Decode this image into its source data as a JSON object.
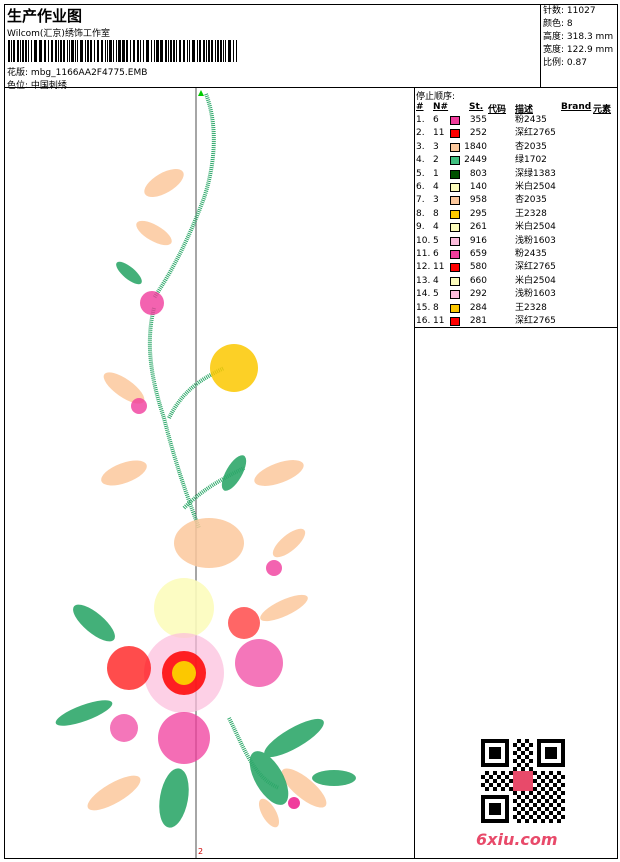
{
  "header": {
    "title": "生产作业图",
    "company": "Wilcom(汇京)绣饰工作室",
    "pattern_label": "花版:",
    "pattern_value": "mbg_1166AA2F4775.EMB",
    "colorpos_label": "色位:",
    "colorpos_value": "中国刺绣"
  },
  "stats": [
    {
      "label": "针数:",
      "value": "11027"
    },
    {
      "label": "颜色:",
      "value": "8"
    },
    {
      "label": "高度:",
      "value": "318.3 mm"
    },
    {
      "label": "宽度:",
      "value": "122.9 mm"
    },
    {
      "label": "比例:",
      "value": "0.87"
    }
  ],
  "stop_sequence": {
    "title": "停止顺序:",
    "columns": [
      "#",
      "N#",
      "St.",
      "代码",
      "描述",
      "Brand",
      "元素"
    ],
    "rows": [
      {
        "idx": "1.",
        "n": "6",
        "color": "#f03c9c",
        "st": "355",
        "desc": "粉2435"
      },
      {
        "idx": "2.",
        "n": "11",
        "color": "#ff0000",
        "st": "252",
        "desc": "深红2765"
      },
      {
        "idx": "3.",
        "n": "3",
        "color": "#fcc89c",
        "st": "1840",
        "desc": "杏2035"
      },
      {
        "idx": "4.",
        "n": "2",
        "color": "#40c080",
        "st": "2449",
        "desc": "绿1702"
      },
      {
        "idx": "5.",
        "n": "1",
        "color": "#005000",
        "st": "803",
        "desc": "深绿1383"
      },
      {
        "idx": "6.",
        "n": "4",
        "color": "#fcfcbc",
        "st": "140",
        "desc": "米白2504"
      },
      {
        "idx": "7.",
        "n": "3",
        "color": "#fcc89c",
        "st": "958",
        "desc": "杏2035"
      },
      {
        "idx": "8.",
        "n": "8",
        "color": "#fcc800",
        "st": "295",
        "desc": "王2328"
      },
      {
        "idx": "9.",
        "n": "4",
        "color": "#fcfcbc",
        "st": "261",
        "desc": "米白2504"
      },
      {
        "idx": "10.",
        "n": "5",
        "color": "#fcbcdc",
        "st": "916",
        "desc": "浅粉1603"
      },
      {
        "idx": "11.",
        "n": "6",
        "color": "#f03c9c",
        "st": "659",
        "desc": "粉2435"
      },
      {
        "idx": "12.",
        "n": "11",
        "color": "#ff0000",
        "st": "580",
        "desc": "深红2765"
      },
      {
        "idx": "13.",
        "n": "4",
        "color": "#fcfcbc",
        "st": "660",
        "desc": "米白2504"
      },
      {
        "idx": "14.",
        "n": "5",
        "color": "#fcbcdc",
        "st": "292",
        "desc": "浅粉1603"
      },
      {
        "idx": "15.",
        "n": "8",
        "color": "#fcc800",
        "st": "284",
        "desc": "王2328"
      },
      {
        "idx": "16.",
        "n": "11",
        "color": "#ff0000",
        "st": "281",
        "desc": "深红2765"
      }
    ]
  },
  "canvas": {
    "axis_label": "2"
  },
  "watermark": "6xiu.com"
}
